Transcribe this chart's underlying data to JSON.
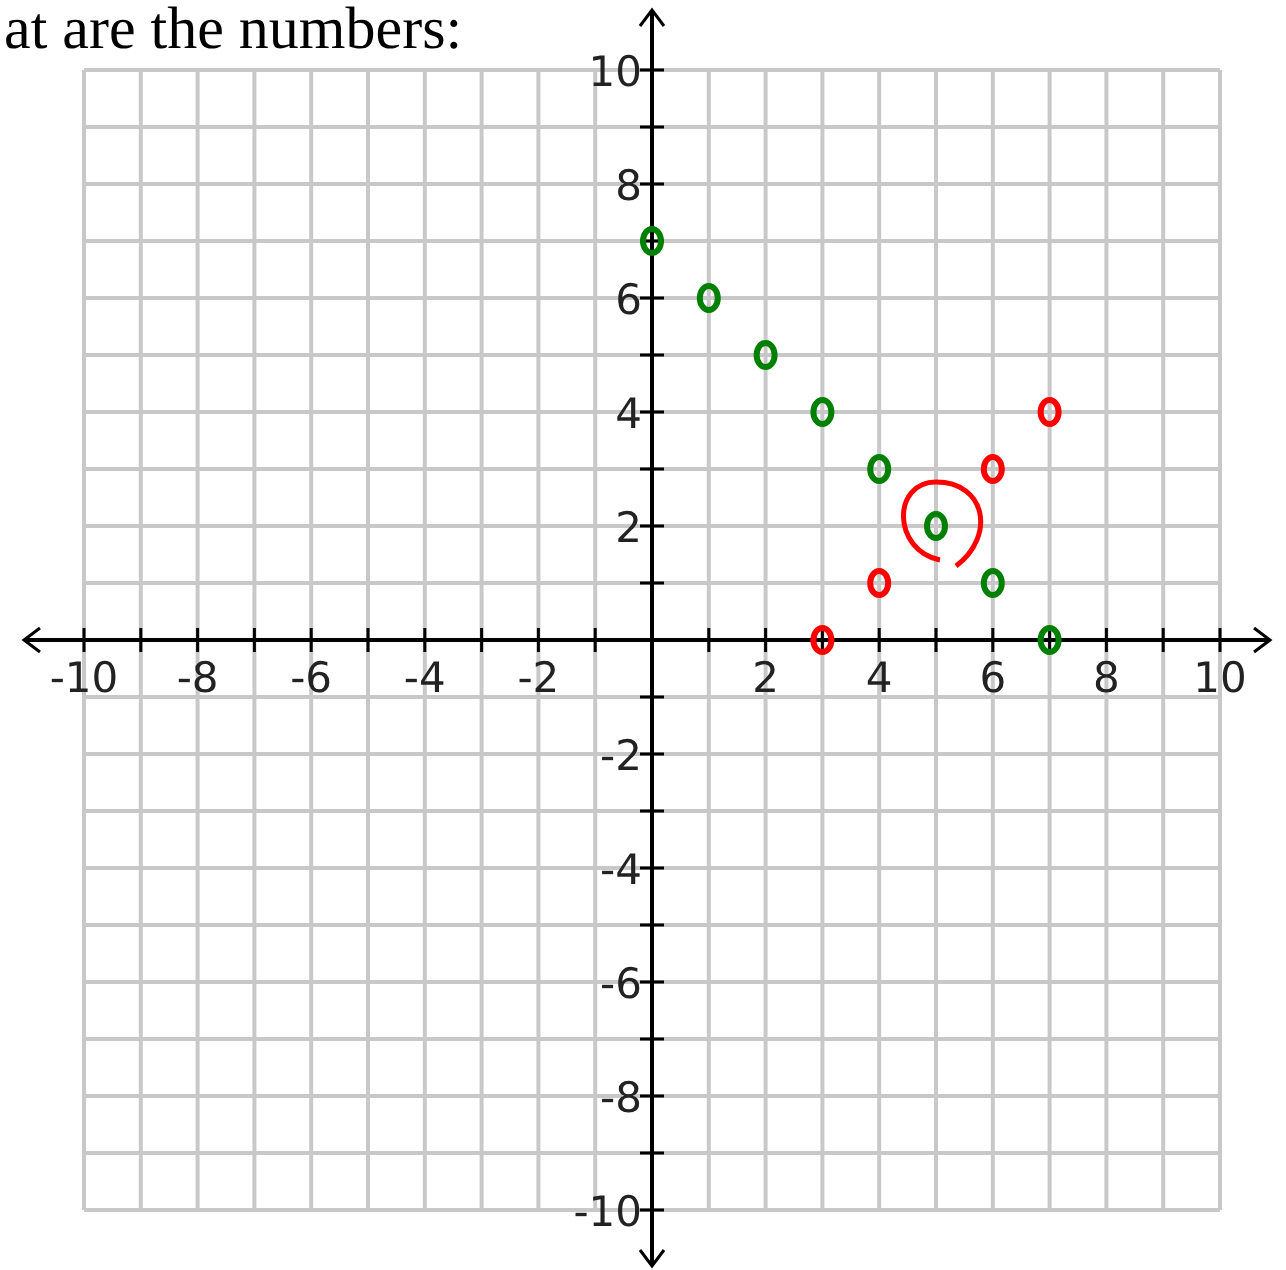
{
  "chart_data": {
    "type": "scatter",
    "title": "at are the numbers:",
    "xlim": [
      -10,
      10
    ],
    "ylim": [
      -10,
      10
    ],
    "xticks": [
      -10,
      {
        "value": -9,
        "label": null
      },
      -8,
      {
        "value": -7,
        "label": null
      },
      -6,
      {
        "value": -5,
        "label": null
      },
      -4,
      {
        "value": -3,
        "label": null
      },
      -2,
      {
        "value": -1,
        "label": null
      },
      {
        "value": 0,
        "label": null
      },
      {
        "value": 1,
        "label": null
      },
      2,
      {
        "value": 3,
        "label": null
      },
      4,
      {
        "value": 5,
        "label": null
      },
      6,
      {
        "value": 7,
        "label": null
      },
      8,
      {
        "value": 9,
        "label": null
      },
      10
    ],
    "yticks": [
      -10,
      {
        "value": -9,
        "label": null
      },
      -8,
      {
        "value": -7,
        "label": null
      },
      -6,
      {
        "value": -5,
        "label": null
      },
      -4,
      {
        "value": -3,
        "label": null
      },
      -2,
      {
        "value": -1,
        "label": null
      },
      {
        "value": 0,
        "label": null
      },
      {
        "value": 1,
        "label": null
      },
      2,
      {
        "value": 3,
        "label": null
      },
      4,
      {
        "value": 5,
        "label": null
      },
      6,
      {
        "value": 7,
        "label": null
      },
      8,
      {
        "value": 9,
        "label": null
      },
      10
    ],
    "grid": true,
    "marker": "circle",
    "series": [
      {
        "color": "#008000",
        "x": [
          0,
          1,
          2,
          3,
          4,
          5,
          6,
          7
        ],
        "values": [
          7,
          6,
          5,
          4,
          3,
          2,
          1,
          0
        ]
      },
      {
        "color": "#ff0000",
        "x": [
          3,
          4,
          6,
          7
        ],
        "values": [
          0,
          1,
          3,
          4
        ]
      }
    ]
  }
}
